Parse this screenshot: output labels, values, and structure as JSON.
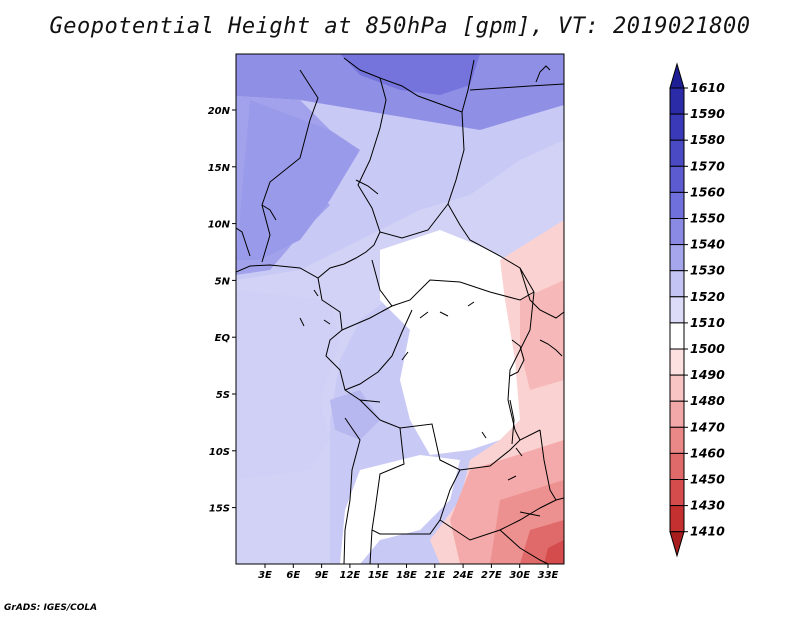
{
  "title": "Geopotential Height at 850hPa [gpm], VT: 2019021800",
  "credit": "GrADS: IGES/COLA",
  "map": {
    "x_ticks": [
      "3E",
      "6E",
      "9E",
      "12E",
      "15E",
      "18E",
      "21E",
      "24E",
      "27E",
      "30E",
      "33E"
    ],
    "y_ticks": [
      "20N",
      "15N",
      "10N",
      "5N",
      "EQ",
      "5S",
      "10S",
      "15S"
    ]
  },
  "colorbar": {
    "labels": [
      "1610",
      "1590",
      "1580",
      "1570",
      "1560",
      "1550",
      "1540",
      "1530",
      "1520",
      "1510",
      "1500",
      "1490",
      "1480",
      "1470",
      "1460",
      "1450",
      "1430",
      "1410"
    ],
    "colors": [
      "#1e1e96",
      "#2b2ba8",
      "#3a3ab8",
      "#4a4ac4",
      "#5c5cd0",
      "#7070dc",
      "#8a8ae4",
      "#a6a6ec",
      "#c4c4f4",
      "#dcdcf9",
      "#ffffff",
      "#fde0e0",
      "#f8c4c4",
      "#f2a8a8",
      "#ea8888",
      "#e06a6a",
      "#d44c4c",
      "#c43030",
      "#a81e1e"
    ]
  }
}
